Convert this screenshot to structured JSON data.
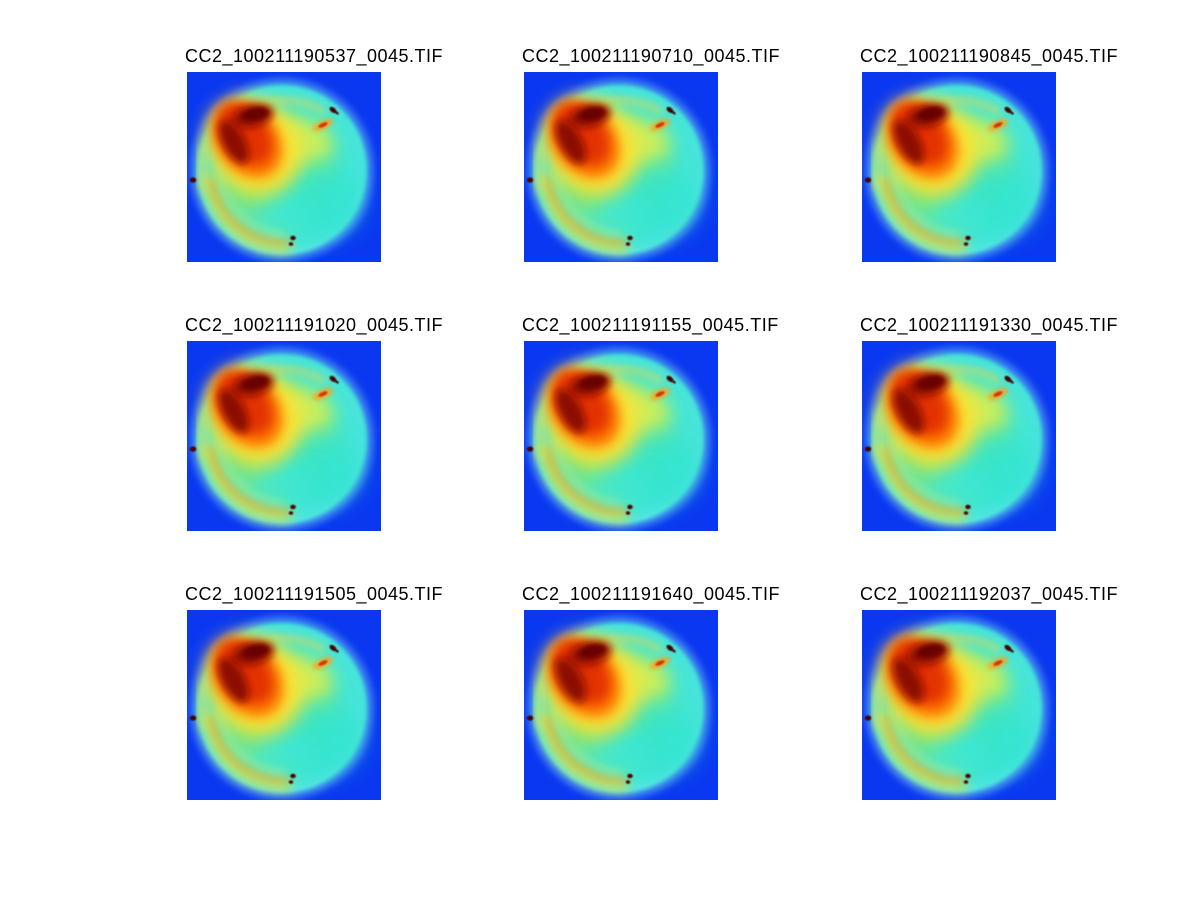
{
  "figure": {
    "background": "#ffffff",
    "grid": "3x3"
  },
  "panels": [
    {
      "title": "CC2_100211190537_0045.TIF"
    },
    {
      "title": "CC2_100211190710_0045.TIF"
    },
    {
      "title": "CC2_100211190845_0045.TIF"
    },
    {
      "title": "CC2_100211191020_0045.TIF"
    },
    {
      "title": "CC2_100211191155_0045.TIF"
    },
    {
      "title": "CC2_100211191330_0045.TIF"
    },
    {
      "title": "CC2_100211191505_0045.TIF"
    },
    {
      "title": "CC2_100211191640_0045.TIF"
    },
    {
      "title": "CC2_100211192037_0045.TIF"
    }
  ],
  "chart_data": {
    "type": "heatmap",
    "layout": "3x3 grid of false-color images, one subplot per frame",
    "colormap": "jet",
    "titles": [
      "CC2_100211190537_0045.TIF",
      "CC2_100211190710_0045.TIF",
      "CC2_100211190845_0045.TIF",
      "CC2_100211191020_0045.TIF",
      "CC2_100211191155_0045.TIF",
      "CC2_100211191330_0045.TIF",
      "CC2_100211191505_0045.TIF",
      "CC2_100211191640_0045.TIF",
      "CC2_100211192037_0045.TIF"
    ],
    "content_description": "Circular specimen on uniform blue background; cyan rim, green-yellow interior, dark-red hot spot at upper-left, yellow arc along lower-left rim, small dark marker spots at top-right, left edge and bottom center",
    "colors": {
      "background_blue": "#0a38f0",
      "rim_cyan": "#8eeef6",
      "disc_teal": "#35e6c8",
      "core_green": "#8fe55e",
      "light_yellow_green": "#d8f055",
      "warm_yellow": "#ffe232",
      "orange": "#ff7c00",
      "red": "#e23300",
      "dark_red": "#8c0800",
      "spot_maroon": "#4a0300"
    }
  }
}
